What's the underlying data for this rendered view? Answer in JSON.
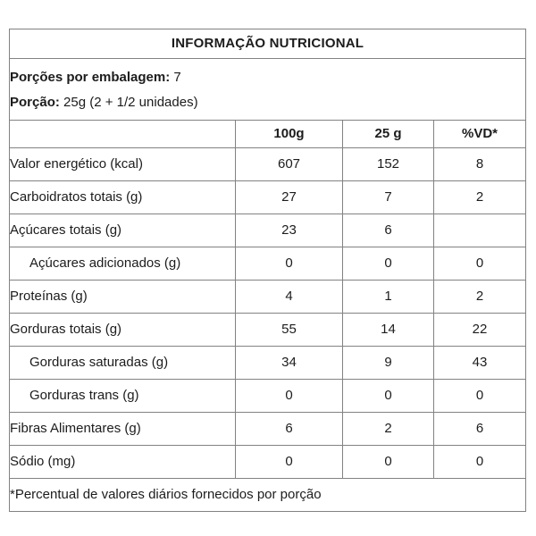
{
  "title": "INFORMAÇÃO NUTRICIONAL",
  "serving": {
    "servings_label": "Porções por embalagem:",
    "servings_value": "7",
    "portion_label": "Porção:",
    "portion_value": "25g (2 + 1/2 unidades)"
  },
  "columns": [
    "100g",
    "25 g",
    "%VD*"
  ],
  "rows": [
    {
      "label": "Valor energético (kcal)",
      "indent": false,
      "values": [
        "607",
        "152",
        "8"
      ]
    },
    {
      "label": "Carboidratos totais (g)",
      "indent": false,
      "values": [
        "27",
        "7",
        "2"
      ]
    },
    {
      "label": "Açúcares totais (g)",
      "indent": false,
      "values": [
        "23",
        "6",
        ""
      ]
    },
    {
      "label": "Açúcares adicionados (g)",
      "indent": true,
      "values": [
        "0",
        "0",
        "0"
      ]
    },
    {
      "label": "Proteínas (g)",
      "indent": false,
      "values": [
        "4",
        "1",
        "2"
      ]
    },
    {
      "label": "Gorduras totais (g)",
      "indent": false,
      "values": [
        "55",
        "14",
        "22"
      ]
    },
    {
      "label": "Gorduras saturadas (g)",
      "indent": true,
      "values": [
        "34",
        "9",
        "43"
      ]
    },
    {
      "label": "Gorduras trans (g)",
      "indent": true,
      "values": [
        "0",
        "0",
        "0"
      ]
    },
    {
      "label": "Fibras Alimentares (g)",
      "indent": false,
      "values": [
        "6",
        "2",
        "6"
      ]
    },
    {
      "label": "Sódio (mg)",
      "indent": false,
      "values": [
        "0",
        "0",
        "0"
      ]
    }
  ],
  "footnote": "*Percentual de valores diários fornecidos por porção",
  "colors": {
    "border": "#828282",
    "text": "#1c1c1c",
    "background": "#ffffff"
  }
}
